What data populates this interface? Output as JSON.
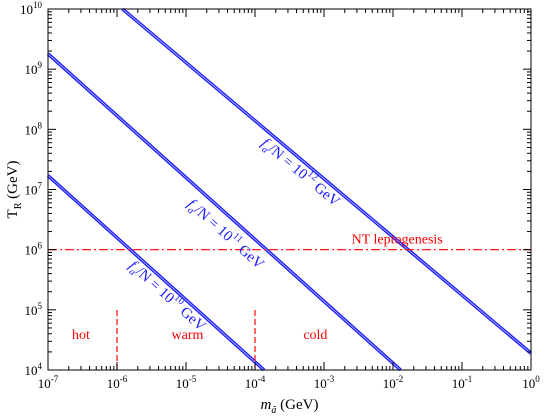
{
  "chart_data": {
    "type": "line",
    "scale": {
      "x": "log",
      "y": "log"
    },
    "xlim": [
      1e-07,
      1
    ],
    "ylim": [
      10000,
      10000000000
    ],
    "grid": false,
    "x_ticks": [
      {
        "value": 1e-07,
        "base": "10",
        "exp": "-7"
      },
      {
        "value": 1e-06,
        "base": "10",
        "exp": "-6"
      },
      {
        "value": 1e-05,
        "base": "10",
        "exp": "-5"
      },
      {
        "value": 0.0001,
        "base": "10",
        "exp": "-4"
      },
      {
        "value": 0.001,
        "base": "10",
        "exp": "-3"
      },
      {
        "value": 0.01,
        "base": "10",
        "exp": "-2"
      },
      {
        "value": 0.1,
        "base": "10",
        "exp": "-1"
      },
      {
        "value": 1,
        "base": "10",
        "exp": "0"
      }
    ],
    "y_ticks": [
      {
        "value": 10000,
        "base": "10",
        "exp": "4"
      },
      {
        "value": 100000,
        "base": "10",
        "exp": "5"
      },
      {
        "value": 1000000,
        "base": "10",
        "exp": "6"
      },
      {
        "value": 10000000,
        "base": "10",
        "exp": "7"
      },
      {
        "value": 100000000,
        "base": "10",
        "exp": "8"
      },
      {
        "value": 1000000000,
        "base": "10",
        "exp": "9"
      },
      {
        "value": 10000000000,
        "base": "10",
        "exp": "10"
      }
    ],
    "xlabel": {
      "main": "m",
      "sub": "ã",
      "unit": " (GeV)"
    },
    "ylabel": {
      "main": "T",
      "sub": "R",
      "unit": " (GeV)"
    },
    "series": [
      {
        "name": {
          "pre": "f",
          "sub": "a",
          "mid": "/N = 10",
          "sup": "10",
          "post": "GeV"
        },
        "color": "#1a1aff",
        "x": [
          1e-07,
          0.000135
        ],
        "y": [
          17000000,
          10000
        ]
      },
      {
        "name": {
          "pre": "f",
          "sub": "a",
          "mid": "/N = 10",
          "sup": "11",
          "post": "GeV"
        },
        "color": "#1a1aff",
        "x": [
          1e-07,
          0.0129
        ],
        "y": [
          1800000000,
          10000
        ]
      },
      {
        "name": {
          "pre": "f",
          "sub": "a",
          "mid": "/N = 10",
          "sup": "12",
          "post": "GeV"
        },
        "color": "#1a1aff",
        "x": [
          1.2e-06,
          1
        ],
        "y": [
          10000000000,
          19000
        ]
      }
    ],
    "reference_line": {
      "label": "NT leptogenesis",
      "y": 1000000,
      "style": "dash-dot",
      "color": "#ff0000"
    },
    "region_dividers": [
      {
        "x": 1e-06,
        "y_top": 100000,
        "color": "#ff0000"
      },
      {
        "x": 0.0001,
        "y_top": 100000,
        "color": "#ff0000"
      }
    ],
    "regions": [
      {
        "label": "hot",
        "x": 3e-07,
        "y": 40000
      },
      {
        "label": "warm",
        "x": 1.05e-05,
        "y": 40000
      },
      {
        "label": "cold",
        "x": 0.00075,
        "y": 40000
      }
    ]
  }
}
